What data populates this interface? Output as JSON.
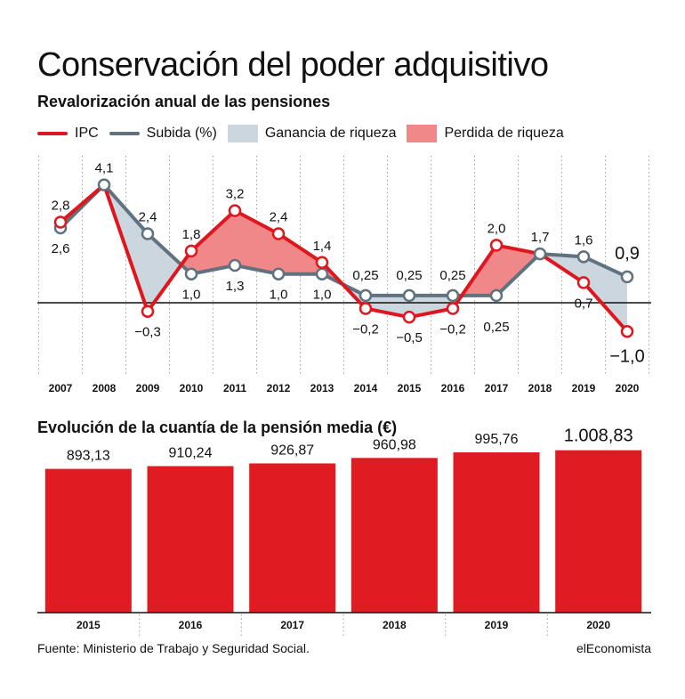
{
  "header": {
    "title": "Conservación del poder adquisitivo",
    "subtitle": "Revalorización anual de las pensiones"
  },
  "legend": {
    "ipc": "IPC",
    "subida": "Subida (%)",
    "ganancia": "Ganancia de riqueza",
    "perdida": "Perdida de riqueza"
  },
  "colors": {
    "ipc": "#e0161e",
    "subida": "#5f727e",
    "ganancia": "#ccd6de",
    "perdida": "#f0888a",
    "bars": "#e01b22",
    "grid": "#9aa4ab"
  },
  "chart_data": [
    {
      "type": "line",
      "x": [
        "2007",
        "2008",
        "2009",
        "2010",
        "2011",
        "2012",
        "2013",
        "2014",
        "2015",
        "2016",
        "2017",
        "2018",
        "2019",
        "2020"
      ],
      "series": [
        {
          "name": "IPC",
          "values": [
            2.8,
            4.1,
            -0.3,
            1.8,
            3.2,
            2.4,
            1.4,
            -0.2,
            -0.5,
            -0.2,
            2.0,
            1.7,
            0.7,
            -1.0
          ],
          "labels": [
            "2,8",
            "",
            "−0,3",
            "1,8",
            "3,2",
            "2,4",
            "1,4",
            "−0,2",
            "−0,5",
            "−0,2",
            "2,0",
            "",
            "0,7",
            "−1,0"
          ]
        },
        {
          "name": "Subida (%)",
          "values": [
            2.6,
            4.1,
            2.4,
            1.0,
            1.3,
            1.0,
            1.0,
            0.25,
            0.25,
            0.25,
            0.25,
            1.7,
            1.6,
            0.9
          ],
          "labels": [
            "2,6",
            "4,1",
            "2,4",
            "1,0",
            "1,3",
            "1,0",
            "1,0",
            "0,25",
            "0,25",
            "0,25",
            "0,25",
            "1,7",
            "1,6",
            "0,9"
          ]
        }
      ],
      "ylim": [
        -1.6,
        4.5
      ],
      "grid": "vertical dotted",
      "legend_position": "top-left"
    },
    {
      "type": "bar",
      "title": "Evolución de la cuantía de la pensión media (€)",
      "categories": [
        "2015",
        "2016",
        "2017",
        "2018",
        "2019",
        "2020"
      ],
      "values": [
        893.13,
        910.24,
        926.87,
        960.98,
        995.76,
        1008.83
      ],
      "labels": [
        "893,13",
        "910,24",
        "926,87",
        "960,98",
        "995,76",
        "1.008,83"
      ],
      "ylim": [
        0,
        1040
      ]
    }
  ],
  "footer": {
    "source": "Fuente: Ministerio de Trabajo y Seguridad Social.",
    "brand": "elEconomista"
  }
}
